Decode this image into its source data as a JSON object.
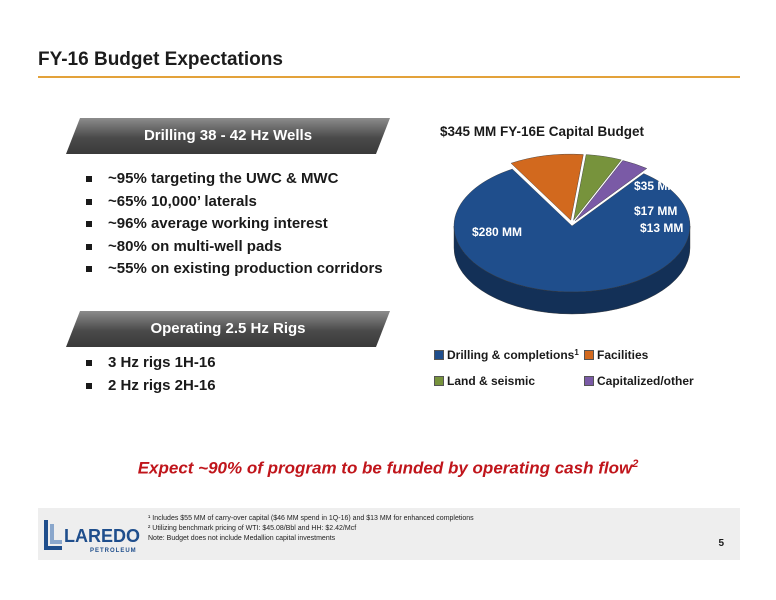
{
  "title": "FY-16 Budget Expectations",
  "drilling_banner": "Drilling 38 - 42 Hz Wells",
  "drilling_bullets": [
    "~95% targeting the UWC & MWC",
    "~65% 10,000’ laterals",
    "~96% average working interest",
    "~80% on multi-well pads",
    "~55% on existing production corridors"
  ],
  "operating_banner": "Operating 2.5 Hz Rigs",
  "operating_bullets": [
    "3 Hz rigs 1H-16",
    "2 Hz rigs 2H-16"
  ],
  "chart_data": {
    "type": "pie",
    "title": "$345 MM FY-16E Capital Budget",
    "slices": [
      {
        "name": "Drilling & completions",
        "value": 280,
        "label": "$280 MM",
        "color": "#1f4e8c",
        "footnote": "1"
      },
      {
        "name": "Facilities",
        "value": 35,
        "label": "$35 MM",
        "color": "#d2691e"
      },
      {
        "name": "Land & seismic",
        "value": 17,
        "label": "$17 MM",
        "color": "#77933c"
      },
      {
        "name": "Capitalized/other",
        "value": 13,
        "label": "$13 MM",
        "color": "#7a5aa6"
      }
    ],
    "legend_position": "bottom"
  },
  "cashflow_text": "Expect ~90% of program to be funded by operating cash flow",
  "cashflow_sup": "2",
  "footnotes": [
    "¹ Includes $55 MM of carry-over capital ($46 MM spend in 1Q-16) and $13 MM for enhanced completions",
    "² Utilizing benchmark pricing of WTI: $45.08/Bbl and HH: $2.42/Mcf",
    "Note: Budget does not include Medallion capital investments"
  ],
  "logo": {
    "main": "LAREDO",
    "sub": "PETROLEUM"
  },
  "page_number": "5"
}
